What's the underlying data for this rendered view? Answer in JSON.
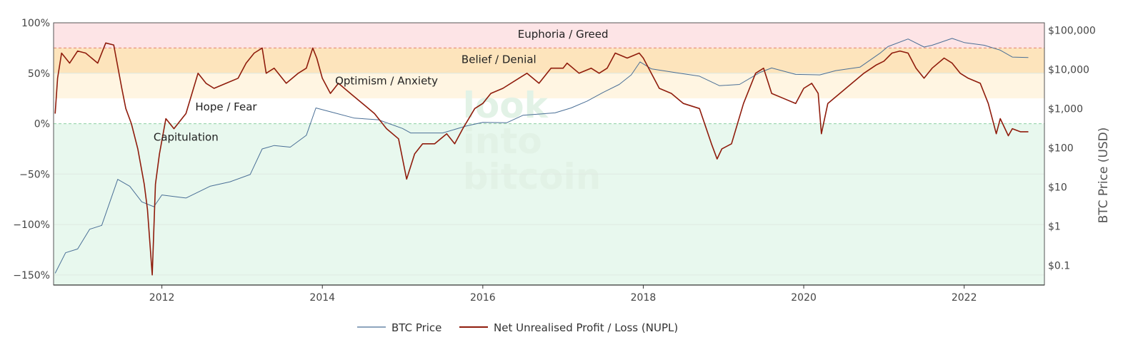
{
  "chart_data": {
    "type": "line",
    "title": "",
    "xlabel": "",
    "ylabel_left": "",
    "ylabel_right": "BTC Price (USD)",
    "x_range": [
      2010.65,
      2023.0
    ],
    "x_ticks": [
      {
        "value": 2012,
        "label": "2012"
      },
      {
        "value": 2014,
        "label": "2014"
      },
      {
        "value": 2016,
        "label": "2016"
      },
      {
        "value": 2018,
        "label": "2018"
      },
      {
        "value": 2020,
        "label": "2020"
      },
      {
        "value": 2022,
        "label": "2022"
      }
    ],
    "y_left": {
      "range": [
        -1.6,
        1.0
      ],
      "ticks": [
        {
          "value": 1.0,
          "label": "100%"
        },
        {
          "value": 0.5,
          "label": "50%"
        },
        {
          "value": 0.0,
          "label": "0%"
        },
        {
          "value": -0.5,
          "label": "−50%"
        },
        {
          "value": -1.0,
          "label": "−100%"
        },
        {
          "value": -1.5,
          "label": "−150%"
        }
      ]
    },
    "y_right": {
      "scale": "log",
      "range": [
        0.03,
        150000
      ],
      "ticks": [
        {
          "value": 100000,
          "label": "$100,000"
        },
        {
          "value": 10000,
          "label": "$10,000"
        },
        {
          "value": 1000,
          "label": "$1,000"
        },
        {
          "value": 100,
          "label": "$100"
        },
        {
          "value": 10,
          "label": "$10"
        },
        {
          "value": 1,
          "label": "$1"
        },
        {
          "value": 0.1,
          "label": "$0.1"
        }
      ]
    },
    "zones": [
      {
        "label": "Euphoria / Greed",
        "from": 0.75,
        "to": 1.0,
        "color": "#fde4e6",
        "label_x": 2017.0,
        "label_y": 0.85
      },
      {
        "label": "Belief / Denial",
        "from": 0.5,
        "to": 0.75,
        "color": "#fde4bc",
        "label_x": 2016.2,
        "label_y": 0.6
      },
      {
        "label": "Optimism / Anxiety",
        "from": 0.25,
        "to": 0.5,
        "color": "#fff5e2",
        "label_x": 2014.8,
        "label_y": 0.39
      },
      {
        "label": "Hope / Fear",
        "from": 0.0,
        "to": 0.25,
        "color": "#ffffff",
        "label_x": 2012.8,
        "label_y": 0.13
      },
      {
        "label": "Capitulation",
        "from": -1.6,
        "to": 0.0,
        "color": "#e8f8ee",
        "label_x": 2012.3,
        "label_y": -0.17
      }
    ],
    "reference_lines": [
      {
        "value": 0.75,
        "color": "#e8967e",
        "style": "dashed"
      },
      {
        "value": 0.0,
        "color": "#9bd4ad",
        "style": "dashed"
      }
    ],
    "legend": {
      "placement": "bottom-center"
    },
    "watermark": [
      "look",
      "into",
      "bitcoin"
    ],
    "series": [
      {
        "name": "BTC Price",
        "axis": "right",
        "color": "#4a6f96",
        "x": [
          2010.67,
          2010.8,
          2010.95,
          2011.1,
          2011.25,
          2011.45,
          2011.6,
          2011.75,
          2011.9,
          2012.0,
          2012.3,
          2012.6,
          2012.85,
          2013.1,
          2013.25,
          2013.4,
          2013.6,
          2013.8,
          2013.92,
          2014.1,
          2014.4,
          2014.7,
          2015.0,
          2015.1,
          2015.5,
          2015.8,
          2016.0,
          2016.3,
          2016.5,
          2016.9,
          2017.1,
          2017.3,
          2017.5,
          2017.7,
          2017.85,
          2017.96,
          2018.1,
          2018.4,
          2018.7,
          2018.95,
          2019.2,
          2019.45,
          2019.6,
          2019.9,
          2020.2,
          2020.4,
          2020.7,
          2020.95,
          2021.05,
          2021.3,
          2021.5,
          2021.6,
          2021.85,
          2022.0,
          2022.25,
          2022.45,
          2022.6,
          2022.8
        ],
        "y": [
          0.06,
          0.2,
          0.25,
          0.8,
          1.0,
          15,
          10,
          4,
          3,
          6,
          5,
          10,
          13,
          20,
          90,
          110,
          100,
          200,
          1000,
          800,
          550,
          500,
          300,
          230,
          230,
          350,
          430,
          420,
          650,
          750,
          1000,
          1500,
          2500,
          4000,
          7000,
          15000,
          10000,
          8000,
          6500,
          3700,
          4000,
          8000,
          10500,
          7200,
          7000,
          9000,
          11000,
          25000,
          37000,
          58000,
          36000,
          40000,
          60000,
          47000,
          40000,
          30000,
          20000,
          19500
        ]
      },
      {
        "name": "Net Unrealised Profit / Loss (NUPL)",
        "axis": "left",
        "color": "#8f1c0c",
        "x": [
          2010.67,
          2010.7,
          2010.75,
          2010.85,
          2010.95,
          2011.05,
          2011.2,
          2011.3,
          2011.4,
          2011.5,
          2011.55,
          2011.62,
          2011.7,
          2011.78,
          2011.82,
          2011.88,
          2011.92,
          2011.97,
          2012.05,
          2012.15,
          2012.3,
          2012.45,
          2012.55,
          2012.65,
          2012.8,
          2012.95,
          2013.05,
          2013.15,
          2013.25,
          2013.3,
          2013.4,
          2013.55,
          2013.7,
          2013.8,
          2013.88,
          2013.93,
          2014.0,
          2014.1,
          2014.2,
          2014.35,
          2014.5,
          2014.65,
          2014.8,
          2014.95,
          2015.05,
          2015.15,
          2015.25,
          2015.4,
          2015.55,
          2015.65,
          2015.75,
          2015.9,
          2016.0,
          2016.1,
          2016.25,
          2016.45,
          2016.55,
          2016.7,
          2016.85,
          2017.0,
          2017.05,
          2017.2,
          2017.35,
          2017.45,
          2017.55,
          2017.65,
          2017.8,
          2017.95,
          2018.0,
          2018.1,
          2018.2,
          2018.35,
          2018.5,
          2018.7,
          2018.85,
          2018.92,
          2018.98,
          2019.1,
          2019.25,
          2019.4,
          2019.5,
          2019.6,
          2019.75,
          2019.9,
          2020.0,
          2020.1,
          2020.18,
          2020.22,
          2020.3,
          2020.45,
          2020.6,
          2020.75,
          2020.9,
          2021.0,
          2021.1,
          2021.2,
          2021.3,
          2021.4,
          2021.45,
          2021.5,
          2021.6,
          2021.75,
          2021.85,
          2021.95,
          2022.05,
          2022.2,
          2022.3,
          2022.4,
          2022.45,
          2022.55,
          2022.6,
          2022.7,
          2022.8
        ],
        "y": [
          0.1,
          0.45,
          0.7,
          0.6,
          0.72,
          0.7,
          0.6,
          0.8,
          0.78,
          0.35,
          0.15,
          0.0,
          -0.25,
          -0.6,
          -0.85,
          -1.5,
          -0.6,
          -0.3,
          0.05,
          -0.05,
          0.1,
          0.5,
          0.4,
          0.35,
          0.4,
          0.45,
          0.6,
          0.7,
          0.75,
          0.5,
          0.55,
          0.4,
          0.5,
          0.55,
          0.75,
          0.65,
          0.45,
          0.3,
          0.4,
          0.3,
          0.2,
          0.1,
          -0.05,
          -0.15,
          -0.55,
          -0.3,
          -0.2,
          -0.2,
          -0.1,
          -0.2,
          -0.05,
          0.15,
          0.2,
          0.3,
          0.35,
          0.45,
          0.5,
          0.4,
          0.55,
          0.55,
          0.6,
          0.5,
          0.55,
          0.5,
          0.55,
          0.7,
          0.65,
          0.7,
          0.65,
          0.5,
          0.35,
          0.3,
          0.2,
          0.15,
          -0.2,
          -0.35,
          -0.25,
          -0.2,
          0.2,
          0.5,
          0.55,
          0.3,
          0.25,
          0.2,
          0.35,
          0.4,
          0.3,
          -0.1,
          0.2,
          0.3,
          0.4,
          0.5,
          0.58,
          0.62,
          0.7,
          0.72,
          0.7,
          0.55,
          0.5,
          0.45,
          0.55,
          0.65,
          0.6,
          0.5,
          0.45,
          0.4,
          0.2,
          -0.1,
          0.05,
          -0.12,
          -0.05,
          -0.08,
          -0.08
        ]
      }
    ]
  }
}
